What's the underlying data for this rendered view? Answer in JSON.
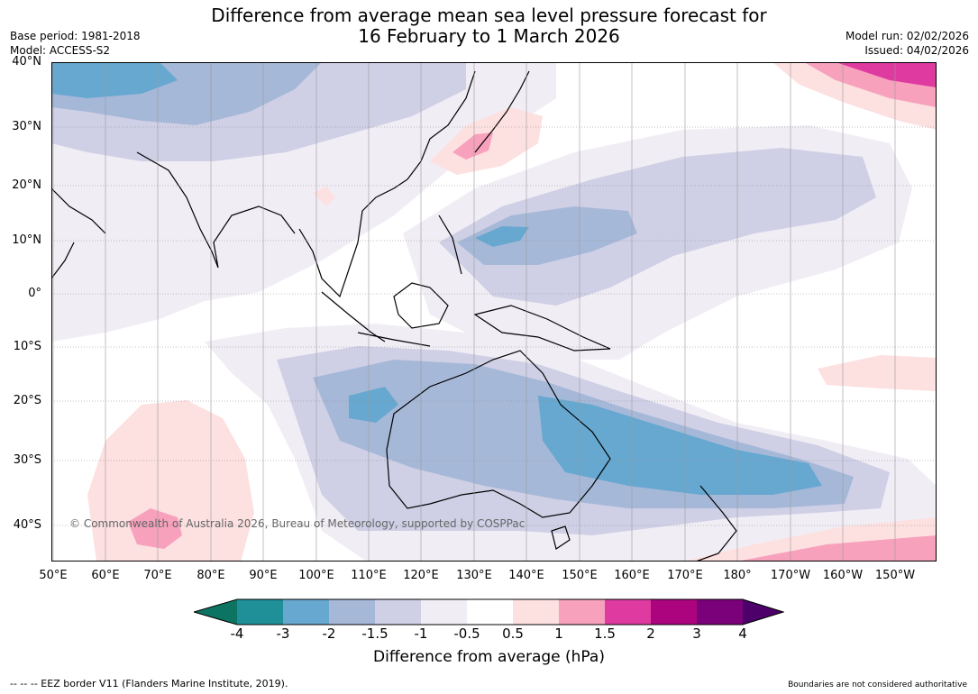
{
  "header": {
    "title_line1": "Difference from average mean sea level pressure forecast for",
    "title_line2": "16 February to 1 March 2026",
    "base_period": "Base period: 1981-2018",
    "model": "Model: ACCESS-S2",
    "model_run": "Model run: 02/02/2026",
    "issued": "Issued: 04/02/2026"
  },
  "axes": {
    "lat_labels": [
      "40°N",
      "30°N",
      "20°N",
      "10°N",
      "0°",
      "10°S",
      "20°S",
      "30°S",
      "40°S"
    ],
    "lon_labels": [
      "50°E",
      "60°E",
      "70°E",
      "80°E",
      "90°E",
      "100°E",
      "110°E",
      "120°E",
      "130°E",
      "140°E",
      "150°E",
      "160°E",
      "170°E",
      "180°",
      "170°W",
      "160°W",
      "150°W"
    ]
  },
  "map": {
    "copyright": "© Commonwealth of Australia 2026, Bureau of Meteorology, supported by COSPPac"
  },
  "colorbar": {
    "ticks": [
      "-4",
      "-3",
      "-2",
      "-1.5",
      "-1",
      "-0.5",
      "0.5",
      "1",
      "1.5",
      "2",
      "3",
      "4"
    ],
    "colors": [
      "#0d7363",
      "#1f8f98",
      "#67a8d0",
      "#a6b8d8",
      "#cfd0e6",
      "#f1edf5",
      "#ffffff",
      "#fde0e0",
      "#f7a1bd",
      "#df3aa0",
      "#ac037f",
      "#7b017a",
      "#4d0069"
    ],
    "title": "Difference from average (hPa)"
  },
  "footer": {
    "eez_note": "--  --  -- EEZ border V11 (Flanders Marine Institute, 2019).",
    "boundaries_note": "Boundaries are not considered authoritative"
  }
}
